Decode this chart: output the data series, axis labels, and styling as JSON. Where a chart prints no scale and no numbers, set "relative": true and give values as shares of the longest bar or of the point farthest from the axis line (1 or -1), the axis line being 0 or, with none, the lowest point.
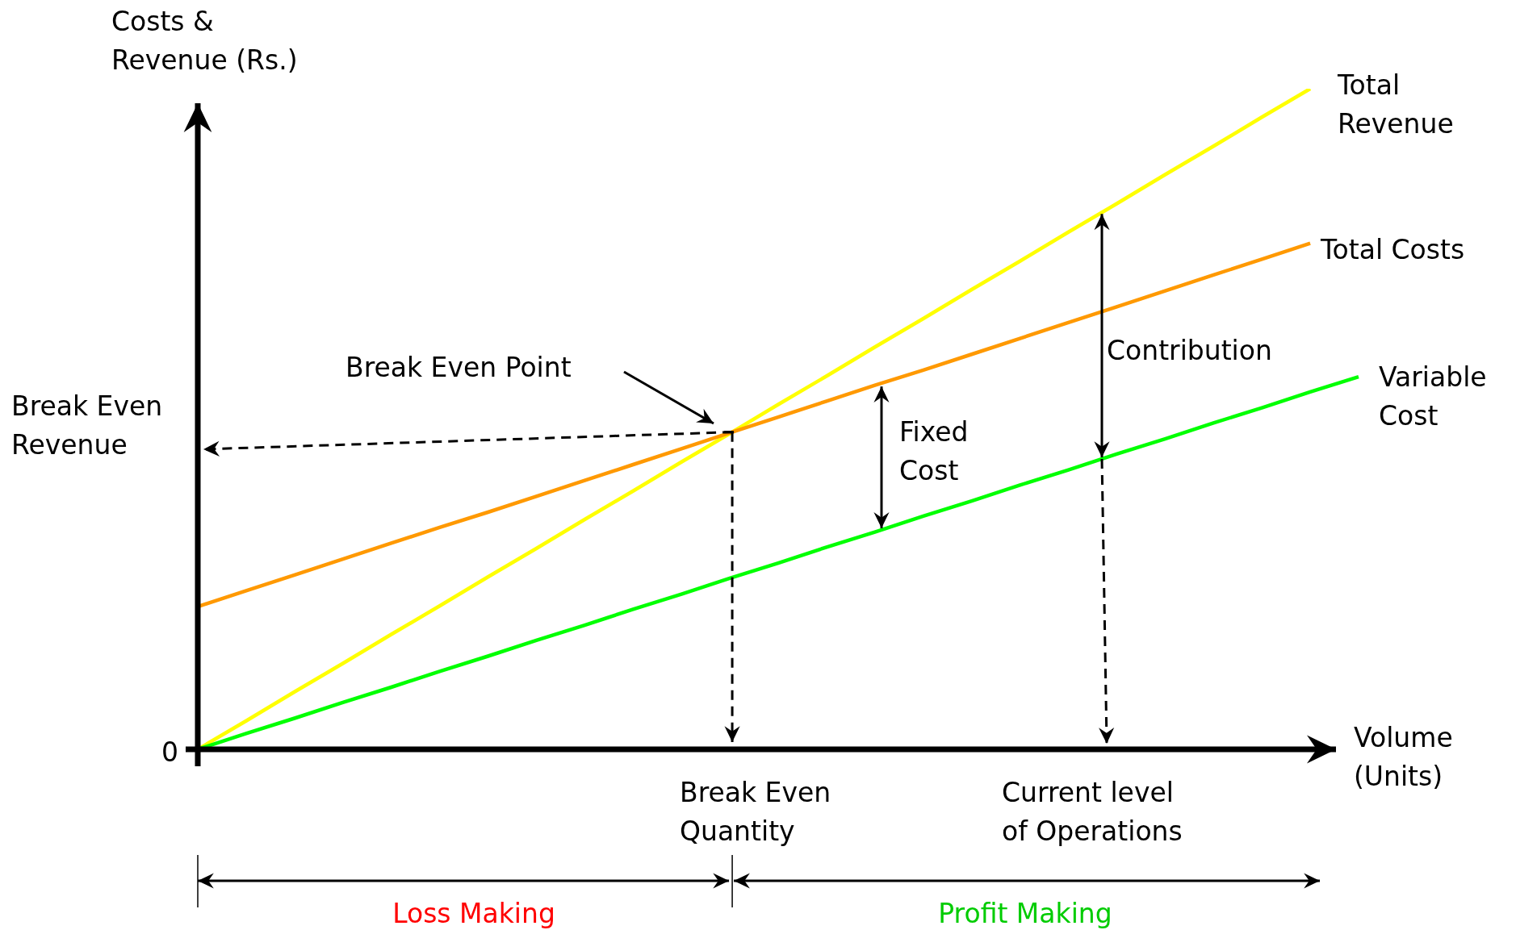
{
  "chart_data": {
    "type": "line",
    "relative": true,
    "marker": "none",
    "xlabel": "Volume (Units)",
    "ylabel": "Costs & Revenue (Rs.)",
    "categories": [
      null,
      null,
      null,
      null,
      null,
      null,
      null,
      null,
      null,
      null,
      null,
      null,
      null,
      null,
      null,
      null,
      null,
      null,
      null,
      null,
      null,
      null,
      null,
      null,
      null
    ],
    "series": [
      {
        "name": "Total Revenue",
        "color": "#ffff00",
        "values": [
          0,
          0.043,
          0.087,
          0.13,
          0.174,
          0.217,
          0.261,
          0.304,
          0.348,
          0.391,
          0.435,
          0.478,
          0.522,
          0.565,
          0.609,
          0.652,
          0.696,
          0.739,
          0.783,
          0.826,
          0.87,
          0.913,
          0.957,
          1,
          null
        ]
      },
      {
        "name": "Total Costs",
        "color": "#ff9900",
        "values": [
          0.216,
          0.24,
          0.264,
          0.288,
          0.312,
          0.336,
          0.359,
          0.383,
          0.407,
          0.431,
          0.455,
          0.479,
          0.503,
          0.527,
          0.551,
          0.574,
          0.598,
          0.622,
          0.646,
          0.67,
          0.694,
          0.718,
          0.742,
          0.766,
          null
        ]
      },
      {
        "name": "Variable Cost",
        "color": "#00ff00",
        "values": [
          0,
          0.024,
          0.047,
          0.071,
          0.094,
          0.118,
          0.141,
          0.165,
          0.188,
          0.212,
          0.235,
          0.259,
          0.282,
          0.306,
          0.329,
          0.353,
          0.376,
          0.4,
          0.423,
          0.447,
          0.47,
          0.494,
          0.517,
          0.541,
          0.564
        ]
      }
    ],
    "annotations": [
      "Break Even Point",
      "Break Even Revenue",
      "Break Even Quantity",
      "Current level of Operations",
      "Fixed Cost",
      "Contribution",
      "Loss Making",
      "Profit Making",
      "0"
    ]
  }
}
